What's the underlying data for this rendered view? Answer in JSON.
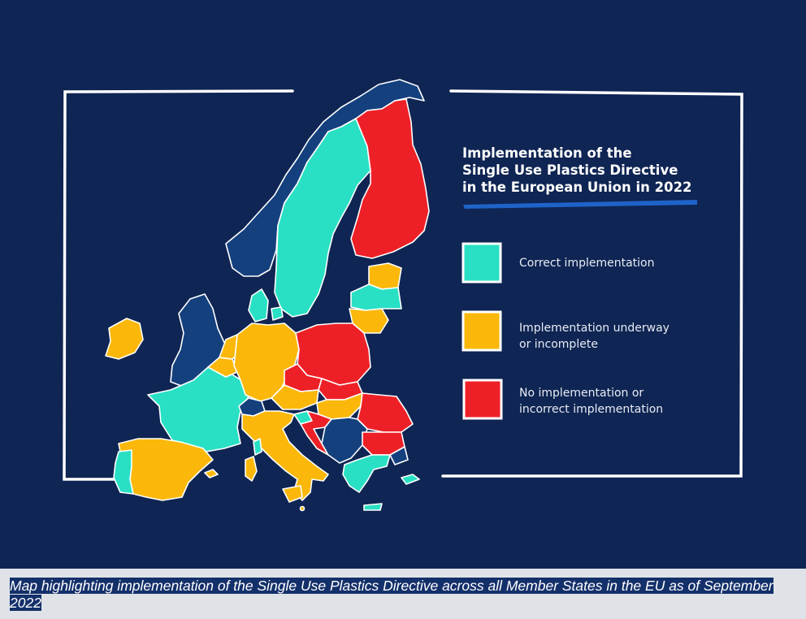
{
  "map": {
    "title_lines": [
      "Implementation of the",
      "Single Use Plastics Directive",
      "in the European Union in 2022"
    ],
    "colors": {
      "background": "#0f2553",
      "frame": "#ffffff",
      "title_underline": "#1f63c9",
      "correct": "#29e0c4",
      "underway": "#fbb80a",
      "none": "#ee2027",
      "non_member": "#14407e",
      "border": "#ffffff"
    },
    "legend": [
      {
        "key": "correct",
        "lines": [
          "Correct implementation"
        ],
        "color": "#29e0c4"
      },
      {
        "key": "underway",
        "lines": [
          "Implementation underway",
          "or incomplete"
        ],
        "color": "#fbb80a"
      },
      {
        "key": "none",
        "lines": [
          "No implementation or",
          "incorrect implementation"
        ],
        "color": "#ee2027"
      }
    ],
    "countries": [
      {
        "name": "Norway",
        "status": "non_member"
      },
      {
        "name": "Sweden",
        "status": "correct"
      },
      {
        "name": "Finland",
        "status": "none"
      },
      {
        "name": "Estonia",
        "status": "underway"
      },
      {
        "name": "Latvia",
        "status": "correct"
      },
      {
        "name": "Lithuania",
        "status": "underway"
      },
      {
        "name": "Denmark",
        "status": "correct"
      },
      {
        "name": "Ireland",
        "status": "underway"
      },
      {
        "name": "United Kingdom",
        "status": "non_member"
      },
      {
        "name": "Netherlands",
        "status": "underway"
      },
      {
        "name": "Belgium",
        "status": "underway"
      },
      {
        "name": "Luxembourg",
        "status": "underway"
      },
      {
        "name": "Germany",
        "status": "underway"
      },
      {
        "name": "Poland",
        "status": "none"
      },
      {
        "name": "Czechia",
        "status": "none"
      },
      {
        "name": "Slovakia",
        "status": "none"
      },
      {
        "name": "Austria",
        "status": "underway"
      },
      {
        "name": "Hungary",
        "status": "underway"
      },
      {
        "name": "Slovenia",
        "status": "correct"
      },
      {
        "name": "Croatia",
        "status": "none"
      },
      {
        "name": "Romania",
        "status": "none"
      },
      {
        "name": "Bulgaria",
        "status": "none"
      },
      {
        "name": "Greece",
        "status": "correct"
      },
      {
        "name": "Cyprus",
        "status": "correct"
      },
      {
        "name": "France",
        "status": "correct"
      },
      {
        "name": "Spain",
        "status": "underway"
      },
      {
        "name": "Portugal",
        "status": "correct"
      },
      {
        "name": "Italy",
        "status": "underway"
      },
      {
        "name": "Malta",
        "status": "underway"
      },
      {
        "name": "Switzerland",
        "status": "non_member"
      },
      {
        "name": "Balkans (non-EU)",
        "status": "non_member"
      }
    ]
  },
  "caption": "Map highlighting implementation of the Single Use Plastics Directive across all Member States in the EU as of September 2022"
}
